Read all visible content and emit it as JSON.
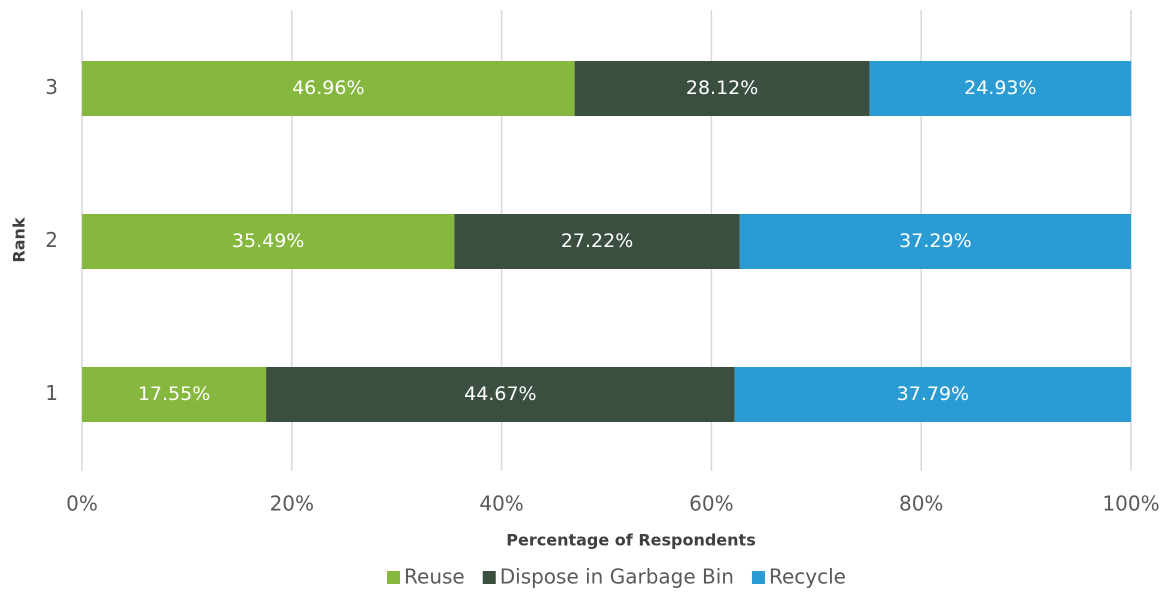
{
  "chart_data": {
    "type": "stacked-bar-horizontal",
    "x_label": "Percentage of Respondents",
    "y_label": "Rank",
    "categories": [
      "1",
      "2",
      "3"
    ],
    "series": [
      {
        "name": "Reuse",
        "color": "#86b73f",
        "values": [
          17.55,
          35.49,
          46.96
        ],
        "value_labels": [
          "17.55%",
          "35.49%",
          "46.96%"
        ]
      },
      {
        "name": "Dispose in Garbage Bin",
        "color": "#3b4f40",
        "values": [
          44.67,
          27.22,
          28.12
        ],
        "value_labels": [
          "44.67%",
          "27.22%",
          "28.12%"
        ]
      },
      {
        "name": "Recycle",
        "color": "#2b9cd3",
        "values": [
          37.79,
          37.29,
          24.93
        ],
        "value_labels": [
          "37.79%",
          "37.29%",
          "24.93%"
        ]
      }
    ],
    "xlim": [
      0,
      100
    ],
    "xticks": [
      {
        "value": 0,
        "label": "0%"
      },
      {
        "value": 20,
        "label": "20%"
      },
      {
        "value": 40,
        "label": "40%"
      },
      {
        "value": 60,
        "label": "60%"
      },
      {
        "value": 80,
        "label": "80%"
      },
      {
        "value": 100,
        "label": "100%"
      }
    ],
    "grid": true,
    "legend": "bottom"
  }
}
